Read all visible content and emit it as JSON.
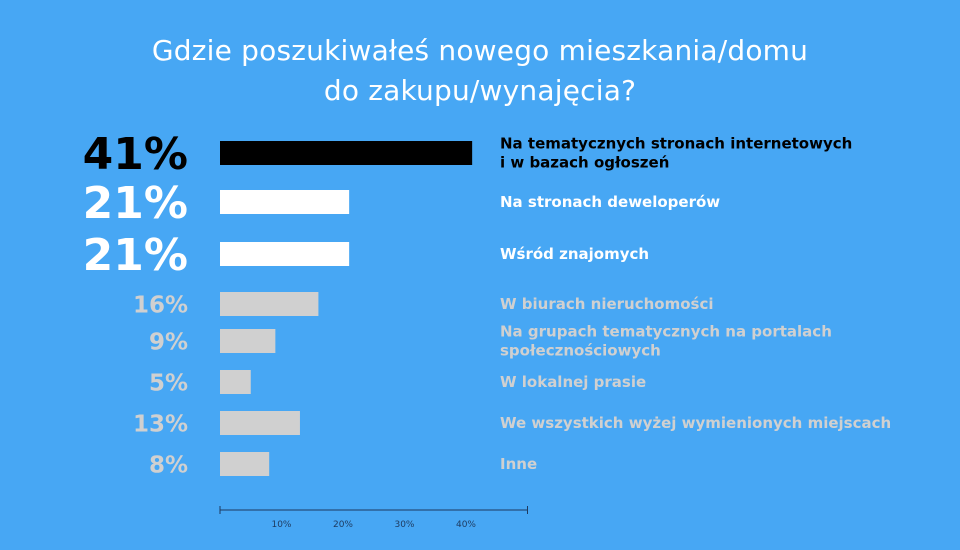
{
  "title_line1": "Gdzie poszukiwałeś nowego mieszkania/domu",
  "title_line2": "do zakupu/wynajęcia?",
  "colors": {
    "background": "#47a7f4",
    "top": "#000000",
    "highlight": "#ffffff",
    "other": "#d0d0d0",
    "axis": "#1e3a5f"
  },
  "chart_data": {
    "type": "bar",
    "orientation": "horizontal",
    "unit": "%",
    "xlim": [
      0,
      50
    ],
    "xticks": [
      "10%",
      "20%",
      "30%",
      "40%"
    ],
    "categories": [
      {
        "value": 41,
        "value_label": "41%",
        "label": [
          "Na tematycznych stronach internetowych",
          "i w bazach ogłoszeń"
        ],
        "tier": "top"
      },
      {
        "value": 21,
        "value_label": "21%",
        "label": [
          "Na stronach deweloperów"
        ],
        "tier": "highlight"
      },
      {
        "value": 21,
        "value_label": "21%",
        "label": [
          "Wśród znajomych"
        ],
        "tier": "highlight"
      },
      {
        "value": 16,
        "value_label": "16%",
        "label": [
          "W biurach nieruchomości"
        ],
        "tier": "other"
      },
      {
        "value": 9,
        "value_label": "9%",
        "label": [
          "Na grupach tematycznych na portalach",
          "społecznościowych"
        ],
        "tier": "other"
      },
      {
        "value": 5,
        "value_label": "5%",
        "label": [
          "W lokalnej prasie"
        ],
        "tier": "other"
      },
      {
        "value": 13,
        "value_label": "13%",
        "label": [
          "We wszystkich wyżej wymienionych miejscach"
        ],
        "tier": "other"
      },
      {
        "value": 8,
        "value_label": "8%",
        "label": [
          "Inne"
        ],
        "tier": "other"
      }
    ]
  }
}
